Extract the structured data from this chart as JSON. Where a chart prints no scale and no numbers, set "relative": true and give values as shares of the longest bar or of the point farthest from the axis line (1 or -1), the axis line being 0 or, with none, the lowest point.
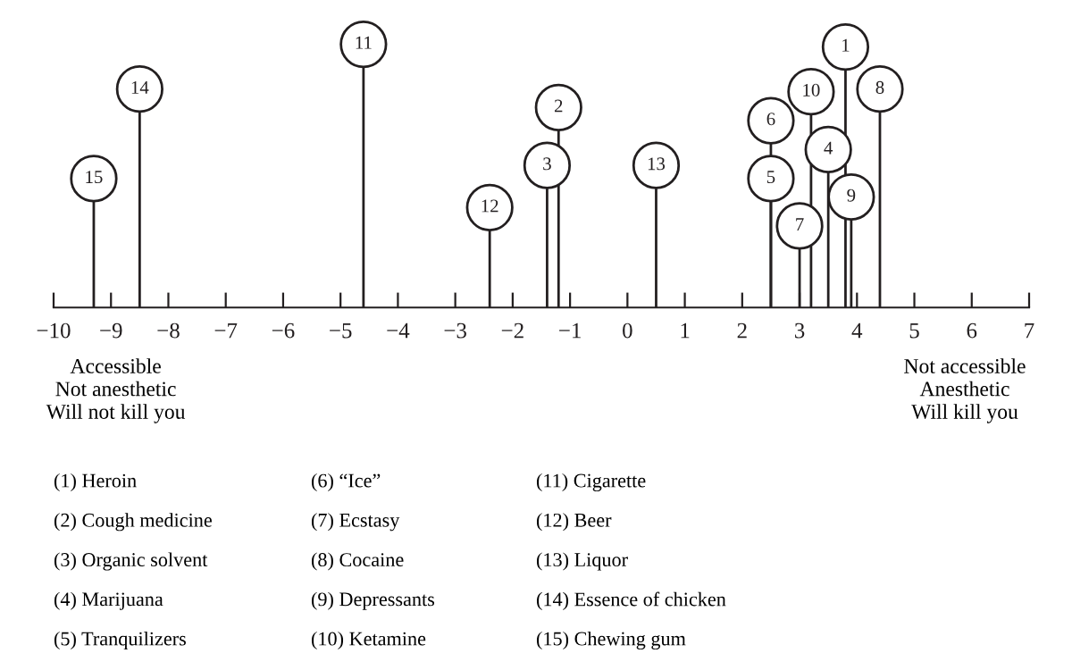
{
  "chart_data": {
    "type": "lollipop",
    "relative": true,
    "marker": "circle",
    "x": [
      3.8,
      -1.2,
      -1.4,
      3.5,
      2.5,
      2.5,
      3.0,
      4.4,
      3.9,
      3.2,
      -4.6,
      -2.4,
      0.5,
      -8.5,
      -9.3
    ],
    "values": [
      0.99,
      0.76,
      0.54,
      0.6,
      0.49,
      0.71,
      0.31,
      0.83,
      0.42,
      0.82,
      1,
      0.38,
      0.54,
      0.83,
      0.49
    ],
    "color": "#231f20",
    "xlim": [
      -10,
      7
    ],
    "xticks": [
      {
        "value": -10,
        "label": "−10"
      },
      {
        "value": -9,
        "label": "−9"
      },
      {
        "value": -8,
        "label": "−8"
      },
      {
        "value": -7,
        "label": "−7"
      },
      {
        "value": -6,
        "label": "−6"
      },
      {
        "value": -5,
        "label": "−5"
      },
      {
        "value": -4,
        "label": "−4"
      },
      {
        "value": -3,
        "label": "−3"
      },
      {
        "value": -2,
        "label": "−2"
      },
      {
        "value": -1,
        "label": "−1"
      },
      0,
      1,
      2,
      3,
      4,
      5,
      6,
      7
    ],
    "grid": false,
    "annotations": [
      {
        "text": "1",
        "x": 3.8,
        "y": 0.99
      },
      {
        "text": "2",
        "x": -1.2,
        "y": 0.76
      },
      {
        "text": "3",
        "x": -1.4,
        "y": 0.54
      },
      {
        "text": "4",
        "x": 3.5,
        "y": 0.6
      },
      {
        "text": "5",
        "x": 2.5,
        "y": 0.49
      },
      {
        "text": "6",
        "x": 2.5,
        "y": 0.71
      },
      {
        "text": "7",
        "x": 3.0,
        "y": 0.31
      },
      {
        "text": "8",
        "x": 4.4,
        "y": 0.83
      },
      {
        "text": "9",
        "x": 3.9,
        "y": 0.42
      },
      {
        "text": "10",
        "x": 3.2,
        "y": 0.82
      },
      {
        "text": "11",
        "x": -4.6,
        "y": 1
      },
      {
        "text": "12",
        "x": -2.4,
        "y": 0.38
      },
      {
        "text": "13",
        "x": 0.5,
        "y": 0.54
      },
      {
        "text": "14",
        "x": -8.5,
        "y": 0.83
      },
      {
        "text": "15",
        "x": -9.3,
        "y": 0.49
      },
      "Accessible\nNot anesthetic\nWill not kill you",
      "Not accessible\nAnesthetic\nWill kill you",
      "(1) Heroin",
      "(2) Cough medicine",
      "(3) Organic solvent",
      "(4) Marijuana",
      "(5) Tranquilizers",
      "(6) “Ice”",
      "(7) Ecstasy",
      "(8) Cocaine",
      "(9) Depressants",
      "(10) Ketamine",
      "(11) Cigarette",
      "(12) Beer",
      "(13) Liquor",
      "(14) Essence of chicken",
      "(15) Chewing gum"
    ]
  }
}
